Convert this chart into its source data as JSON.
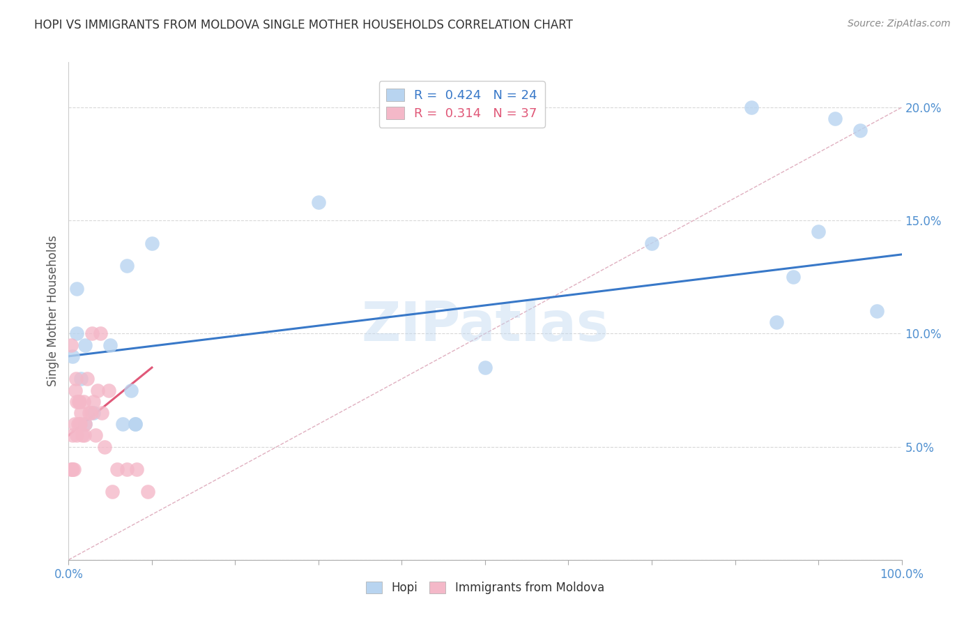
{
  "title": "HOPI VS IMMIGRANTS FROM MOLDOVA SINGLE MOTHER HOUSEHOLDS CORRELATION CHART",
  "source": "Source: ZipAtlas.com",
  "ylabel": "Single Mother Households",
  "legend1_label": "Hopi",
  "legend2_label": "Immigrants from Moldova",
  "R1": 0.424,
  "N1": 24,
  "R2": 0.314,
  "N2": 37,
  "hopi_color": "#b8d4f0",
  "moldova_color": "#f4b8c8",
  "hopi_line_color": "#3878c8",
  "moldova_line_color": "#e05878",
  "diagonal_color": "#e0b0c0",
  "tick_color": "#5090d0",
  "watermark": "ZIPatlas",
  "xlim": [
    0,
    1.0
  ],
  "ylim": [
    0,
    0.22
  ],
  "x_ticks": [
    0.0,
    0.1,
    0.2,
    0.3,
    0.4,
    0.5,
    0.6,
    0.7,
    0.8,
    0.9,
    1.0
  ],
  "y_ticks": [
    0.0,
    0.05,
    0.1,
    0.15,
    0.2
  ],
  "y_tick_labels": [
    "",
    "5.0%",
    "10.0%",
    "15.0%",
    "20.0%"
  ],
  "hopi_x": [
    0.005,
    0.01,
    0.01,
    0.015,
    0.02,
    0.02,
    0.03,
    0.05,
    0.065,
    0.07,
    0.075,
    0.08,
    0.1,
    0.08,
    0.3,
    0.5,
    0.7,
    0.82,
    0.85,
    0.87,
    0.9,
    0.92,
    0.95,
    0.97
  ],
  "hopi_y": [
    0.09,
    0.12,
    0.1,
    0.08,
    0.06,
    0.095,
    0.065,
    0.095,
    0.06,
    0.13,
    0.075,
    0.06,
    0.14,
    0.06,
    0.158,
    0.085,
    0.14,
    0.2,
    0.105,
    0.125,
    0.145,
    0.195,
    0.19,
    0.11
  ],
  "moldova_x": [
    0.003,
    0.003,
    0.004,
    0.005,
    0.005,
    0.006,
    0.007,
    0.008,
    0.009,
    0.01,
    0.01,
    0.011,
    0.012,
    0.013,
    0.013,
    0.014,
    0.015,
    0.016,
    0.018,
    0.019,
    0.02,
    0.022,
    0.025,
    0.027,
    0.028,
    0.03,
    0.032,
    0.035,
    0.038,
    0.04,
    0.043,
    0.048,
    0.052,
    0.058,
    0.07,
    0.082,
    0.095
  ],
  "moldova_y": [
    0.095,
    0.04,
    0.04,
    0.04,
    0.055,
    0.04,
    0.06,
    0.075,
    0.08,
    0.055,
    0.07,
    0.06,
    0.07,
    0.06,
    0.07,
    0.06,
    0.065,
    0.055,
    0.07,
    0.055,
    0.06,
    0.08,
    0.065,
    0.065,
    0.1,
    0.07,
    0.055,
    0.075,
    0.1,
    0.065,
    0.05,
    0.075,
    0.03,
    0.04,
    0.04,
    0.04,
    0.03
  ],
  "hopi_line_x0": 0.0,
  "hopi_line_y0": 0.09,
  "hopi_line_x1": 1.0,
  "hopi_line_y1": 0.135,
  "moldova_line_x0": 0.0,
  "moldova_line_y0": 0.055,
  "moldova_line_x1": 0.1,
  "moldova_line_y1": 0.085
}
